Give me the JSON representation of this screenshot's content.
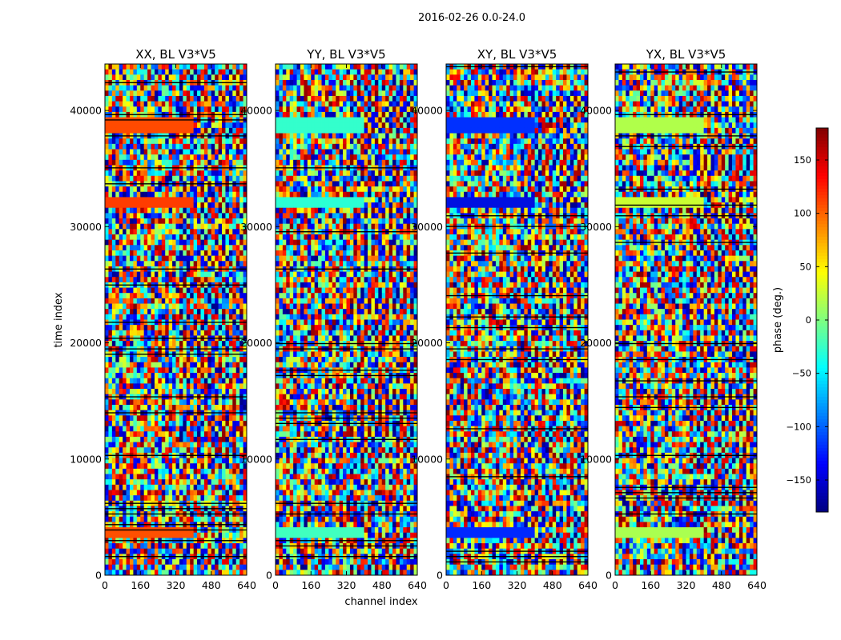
{
  "figure": {
    "suptitle": "2016-02-26 0.0-24.0",
    "ylabel": "time index",
    "xlabel": "channel index",
    "colorbar_label": "phase (deg.)"
  },
  "chart_data": {
    "type": "heatmap",
    "panels": [
      {
        "title": "XX, BL V3*V5",
        "corr": "XX"
      },
      {
        "title": "YY, BL V3*V5",
        "corr": "YY"
      },
      {
        "title": "XY, BL V3*V5",
        "corr": "XY"
      },
      {
        "title": "YX, BL V3*V5",
        "corr": "YX"
      }
    ],
    "x_ticks": [
      "0",
      "160",
      "320",
      "480",
      "640"
    ],
    "x_tick_values": [
      0,
      160,
      320,
      480,
      640
    ],
    "xlim": [
      0,
      640
    ],
    "y_ticks": [
      "0",
      "10000",
      "20000",
      "30000",
      "40000"
    ],
    "y_tick_values": [
      0,
      10000,
      20000,
      30000,
      40000
    ],
    "ylim": [
      0,
      44000
    ],
    "colorbar": {
      "ticks": [
        "150",
        "100",
        "50",
        "0",
        "−50",
        "−100",
        "−150"
      ],
      "tick_values": [
        150,
        100,
        50,
        0,
        -50,
        -100,
        -150
      ],
      "vmin": -180,
      "vmax": 180,
      "colormap": "jet"
    }
  }
}
